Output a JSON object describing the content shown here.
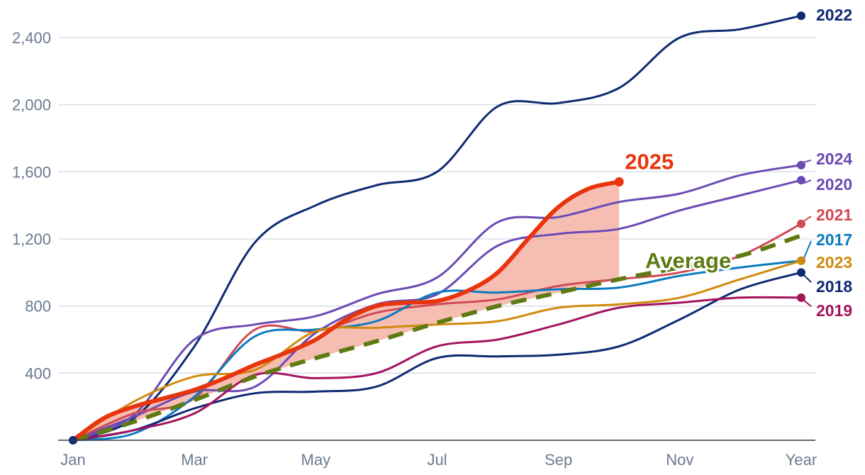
{
  "chart_data": {
    "type": "line",
    "title": "",
    "xlabel": "",
    "ylabel": "",
    "x_ticks": [
      "Jan",
      "Mar",
      "May",
      "Jul",
      "Sep",
      "Nov",
      "Year"
    ],
    "y_ticks": [
      400,
      800,
      1200,
      1600,
      2000,
      2400
    ],
    "y_tick_labels": [
      "400",
      "800",
      "1,200",
      "1,600",
      "2,000",
      "2,400"
    ],
    "ylim": [
      0,
      2520
    ],
    "grid": true,
    "series": [
      {
        "name": "2022",
        "color": "#0f2a73",
        "points": [
          [
            0,
            0
          ],
          [
            1,
            130
          ],
          [
            2,
            560
          ],
          [
            3,
            1180
          ],
          [
            4,
            1400
          ],
          [
            5,
            1520
          ],
          [
            6,
            1600
          ],
          [
            7,
            1990
          ],
          [
            8,
            2010
          ],
          [
            9,
            2100
          ],
          [
            10,
            2400
          ],
          [
            11,
            2450
          ],
          [
            12,
            2530
          ]
        ]
      },
      {
        "name": "2024",
        "color": "#6b4bb3",
        "points": [
          [
            0,
            0
          ],
          [
            1,
            150
          ],
          [
            2,
            600
          ],
          [
            3,
            690
          ],
          [
            4,
            740
          ],
          [
            5,
            870
          ],
          [
            6,
            970
          ],
          [
            7,
            1300
          ],
          [
            8,
            1330
          ],
          [
            9,
            1420
          ],
          [
            10,
            1470
          ],
          [
            11,
            1580
          ],
          [
            12,
            1640
          ]
        ]
      },
      {
        "name": "2020",
        "color": "#6b4bb3",
        "points": [
          [
            0,
            0
          ],
          [
            1,
            140
          ],
          [
            2,
            290
          ],
          [
            3,
            320
          ],
          [
            4,
            640
          ],
          [
            5,
            810
          ],
          [
            6,
            870
          ],
          [
            7,
            1160
          ],
          [
            8,
            1230
          ],
          [
            9,
            1260
          ],
          [
            10,
            1370
          ],
          [
            11,
            1460
          ],
          [
            12,
            1550
          ]
        ]
      },
      {
        "name": "2021",
        "color": "#d04a55",
        "points": [
          [
            0,
            0
          ],
          [
            1,
            160
          ],
          [
            2,
            250
          ],
          [
            3,
            660
          ],
          [
            4,
            650
          ],
          [
            5,
            760
          ],
          [
            6,
            810
          ],
          [
            7,
            840
          ],
          [
            8,
            920
          ],
          [
            9,
            960
          ],
          [
            10,
            1000
          ],
          [
            11,
            1100
          ],
          [
            12,
            1290
          ]
        ]
      },
      {
        "name": "2017",
        "color": "#0a7cc0",
        "points": [
          [
            0,
            0
          ],
          [
            1,
            40
          ],
          [
            2,
            260
          ],
          [
            3,
            620
          ],
          [
            4,
            660
          ],
          [
            5,
            710
          ],
          [
            6,
            880
          ],
          [
            7,
            880
          ],
          [
            8,
            900
          ],
          [
            9,
            910
          ],
          [
            10,
            980
          ],
          [
            11,
            1030
          ],
          [
            12,
            1070
          ]
        ]
      },
      {
        "name": "2023",
        "color": "#d08a0c",
        "points": [
          [
            0,
            0
          ],
          [
            1,
            230
          ],
          [
            2,
            380
          ],
          [
            3,
            420
          ],
          [
            4,
            650
          ],
          [
            5,
            670
          ],
          [
            6,
            690
          ],
          [
            7,
            710
          ],
          [
            8,
            790
          ],
          [
            9,
            810
          ],
          [
            10,
            850
          ],
          [
            11,
            960
          ],
          [
            12,
            1070
          ]
        ]
      },
      {
        "name": "2018",
        "color": "#0f2a73",
        "points": [
          [
            0,
            0
          ],
          [
            1,
            60
          ],
          [
            2,
            190
          ],
          [
            3,
            280
          ],
          [
            4,
            290
          ],
          [
            5,
            320
          ],
          [
            6,
            490
          ],
          [
            7,
            500
          ],
          [
            8,
            510
          ],
          [
            9,
            560
          ],
          [
            10,
            720
          ],
          [
            11,
            900
          ],
          [
            12,
            1000
          ]
        ]
      },
      {
        "name": "2019",
        "color": "#a3145f",
        "points": [
          [
            0,
            0
          ],
          [
            1,
            60
          ],
          [
            2,
            160
          ],
          [
            3,
            390
          ],
          [
            4,
            370
          ],
          [
            5,
            400
          ],
          [
            6,
            560
          ],
          [
            7,
            600
          ],
          [
            8,
            690
          ],
          [
            9,
            790
          ],
          [
            10,
            820
          ],
          [
            11,
            850
          ],
          [
            12,
            850
          ]
        ]
      },
      {
        "name": "Average",
        "color": "#5f7a12",
        "dashed": true,
        "points": [
          [
            0,
            0
          ],
          [
            1,
            110
          ],
          [
            2,
            240
          ],
          [
            3,
            380
          ],
          [
            4,
            490
          ],
          [
            5,
            590
          ],
          [
            6,
            700
          ],
          [
            7,
            800
          ],
          [
            8,
            880
          ],
          [
            9,
            960
          ],
          [
            10,
            1030
          ],
          [
            11,
            1100
          ],
          [
            12,
            1220
          ]
        ]
      },
      {
        "name": "2025",
        "color": "#e8350e",
        "highlight": true,
        "points": [
          [
            0,
            0
          ],
          [
            0.5,
            130
          ],
          [
            1,
            200
          ],
          [
            1.5,
            250
          ],
          [
            2,
            300
          ],
          [
            2.5,
            370
          ],
          [
            3,
            450
          ],
          [
            3.5,
            520
          ],
          [
            4,
            600
          ],
          [
            4.5,
            720
          ],
          [
            5,
            800
          ],
          [
            5.5,
            820
          ],
          [
            6,
            830
          ],
          [
            6.5,
            890
          ],
          [
            7,
            1000
          ],
          [
            7.5,
            1200
          ],
          [
            8,
            1390
          ],
          [
            8.5,
            1500
          ],
          [
            9,
            1540
          ]
        ]
      }
    ],
    "shaded_area": {
      "between": [
        "2025",
        "Average"
      ],
      "color": "#f2a293"
    }
  }
}
